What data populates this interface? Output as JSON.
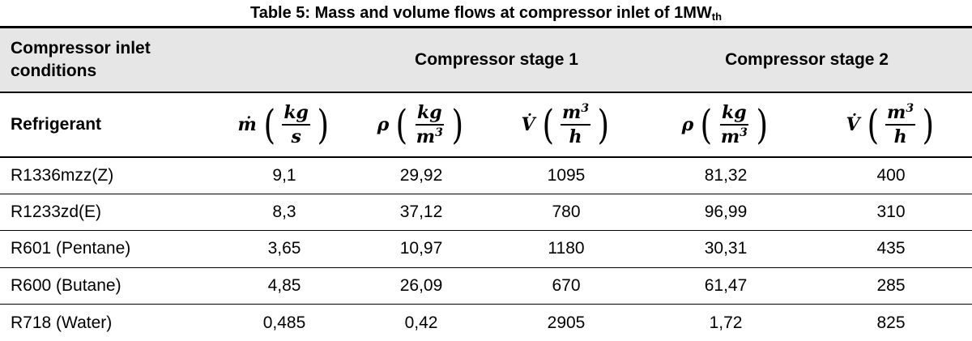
{
  "caption": {
    "main": "Table 5: Mass and volume flows at compressor inlet of 1MW",
    "sub": "th"
  },
  "header": {
    "conditions_line1": "Compressor inlet",
    "conditions_line2": "conditions",
    "stage1": "Compressor stage 1",
    "stage2": "Compressor stage 2",
    "refrigerant": "Refrigerant"
  },
  "symbols": {
    "m_dot": {
      "var": "ṁ",
      "num": "kg",
      "den": "s"
    },
    "rho1": {
      "var": "ρ",
      "num": "kg",
      "den": "m",
      "den_sup": "3"
    },
    "v_dot1": {
      "var": "V̇",
      "num": "m",
      "num_sup": "3",
      "den": "h"
    },
    "rho2": {
      "var": "ρ",
      "num": "kg",
      "den": "m",
      "den_sup": "3"
    },
    "v_dot2": {
      "var": "V̇",
      "num": "m",
      "num_sup": "3",
      "den": "h"
    }
  },
  "rows": [
    {
      "name": "R1336mzz(Z)",
      "m": "9,1",
      "rho1": "29,92",
      "v1": "1095",
      "rho2": "81,32",
      "v2": "400"
    },
    {
      "name": "R1233zd(E)",
      "m": "8,3",
      "rho1": "37,12",
      "v1": "780",
      "rho2": "96,99",
      "v2": "310"
    },
    {
      "name": "R601 (Pentane)",
      "m": "3,65",
      "rho1": "10,97",
      "v1": "1180",
      "rho2": "30,31",
      "v2": "435"
    },
    {
      "name": "R600 (Butane)",
      "m": "4,85",
      "rho1": "26,09",
      "v1": "670",
      "rho2": "61,47",
      "v2": "285"
    },
    {
      "name": "R718 (Water)",
      "m": "0,485",
      "rho1": "0,42",
      "v1": "2905",
      "rho2": "1,72",
      "v2": "825"
    }
  ]
}
